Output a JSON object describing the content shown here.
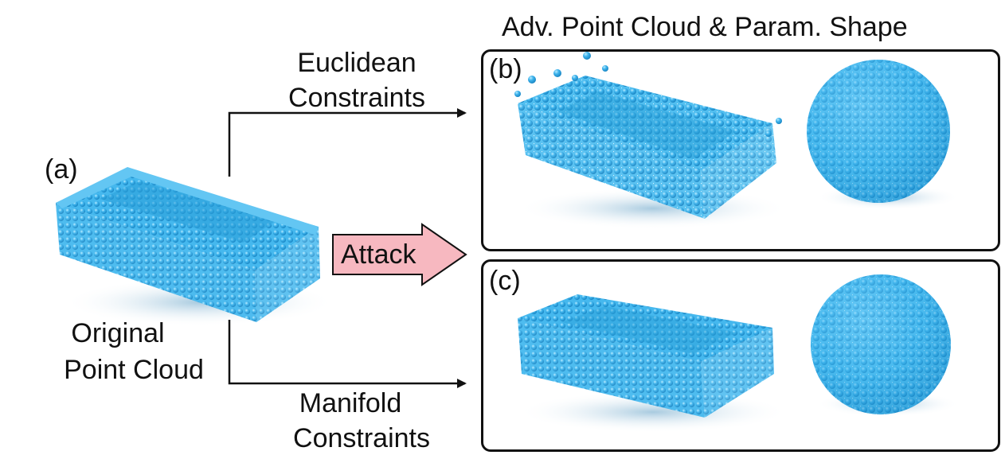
{
  "header": {
    "title": "Adv. Point Cloud & Param. Shape"
  },
  "labels": {
    "panel_a": "(a)",
    "panel_b": "(b)",
    "panel_c": "(c)",
    "original_line1": "Original",
    "original_line2": "Point Cloud",
    "euclidean_line1": "Euclidean",
    "euclidean_line2": "Constraints",
    "manifold_line1": "Manifold",
    "manifold_line2": "Constraints",
    "attack": "Attack"
  },
  "colors": {
    "point": "#3db3ec",
    "point_light": "#8fd8fb",
    "point_dark": "#1a86c4",
    "attack_fill": "#f7b8c0",
    "stroke": "#111111"
  }
}
